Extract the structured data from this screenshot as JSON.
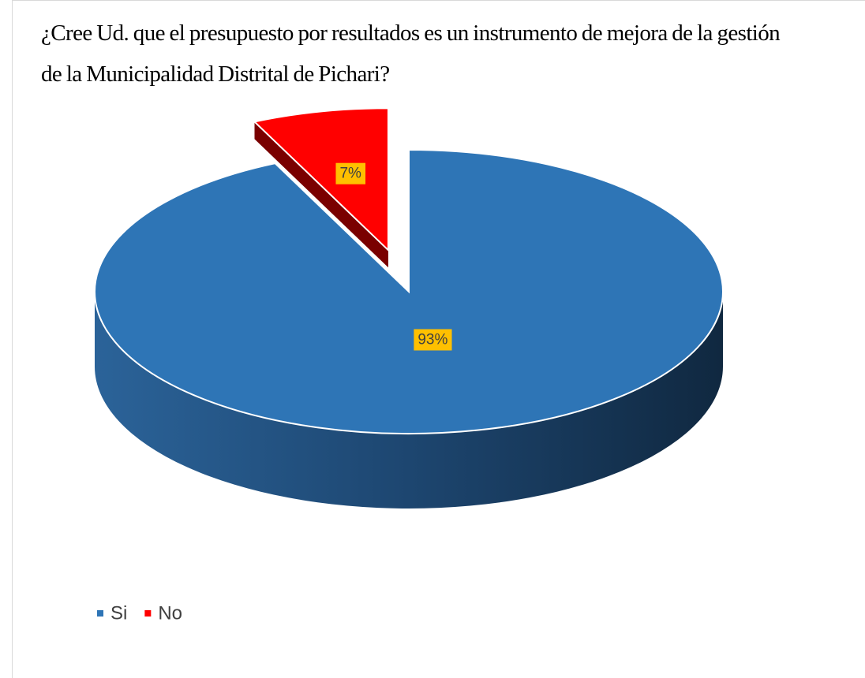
{
  "chart_data": {
    "type": "pie",
    "title": "¿Cree Ud. que el presupuesto por resultados es un instrumento de mejora de la gestión de la Municipalidad Distrital de Pichari?",
    "categories": [
      "Si",
      "No"
    ],
    "values": [
      93,
      7
    ],
    "value_labels": [
      "93%",
      "7%"
    ],
    "colors": [
      "#2E75B6",
      "#FF0000"
    ],
    "legend": "bottom-left"
  }
}
